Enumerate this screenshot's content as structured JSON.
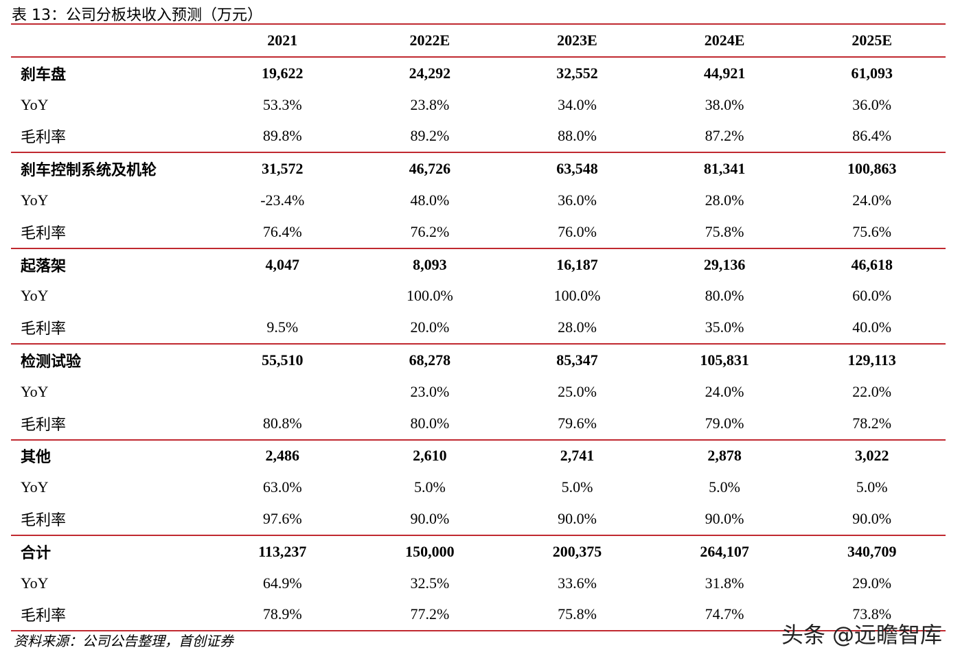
{
  "title": "表 13：公司分板块收入预测（万元）",
  "columns": [
    "",
    "2021",
    "2022E",
    "2023E",
    "2024E",
    "2025E"
  ],
  "rows": [
    {
      "label": "刹车盘",
      "main": true,
      "values": [
        "19,622",
        "24,292",
        "32,552",
        "44,921",
        "61,093"
      ]
    },
    {
      "label": "YoY",
      "main": false,
      "values": [
        "53.3%",
        "23.8%",
        "34.0%",
        "38.0%",
        "36.0%"
      ]
    },
    {
      "label": "毛利率",
      "main": false,
      "values": [
        "89.8%",
        "89.2%",
        "88.0%",
        "87.2%",
        "86.4%"
      ]
    },
    {
      "label": "刹车控制系统及机轮",
      "main": true,
      "values": [
        "31,572",
        "46,726",
        "63,548",
        "81,341",
        "100,863"
      ]
    },
    {
      "label": "YoY",
      "main": false,
      "values": [
        "-23.4%",
        "48.0%",
        "36.0%",
        "28.0%",
        "24.0%"
      ]
    },
    {
      "label": "毛利率",
      "main": false,
      "values": [
        "76.4%",
        "76.2%",
        "76.0%",
        "75.8%",
        "75.6%"
      ]
    },
    {
      "label": "起落架",
      "main": true,
      "values": [
        "4,047",
        "8,093",
        "16,187",
        "29,136",
        "46,618"
      ]
    },
    {
      "label": "YoY",
      "main": false,
      "values": [
        "",
        "100.0%",
        "100.0%",
        "80.0%",
        "60.0%"
      ]
    },
    {
      "label": "毛利率",
      "main": false,
      "values": [
        "9.5%",
        "20.0%",
        "28.0%",
        "35.0%",
        "40.0%"
      ]
    },
    {
      "label": "检测试验",
      "main": true,
      "values": [
        "55,510",
        "68,278",
        "85,347",
        "105,831",
        "129,113"
      ]
    },
    {
      "label": "YoY",
      "main": false,
      "values": [
        "",
        "23.0%",
        "25.0%",
        "24.0%",
        "22.0%"
      ]
    },
    {
      "label": "毛利率",
      "main": false,
      "values": [
        "80.8%",
        "80.0%",
        "79.6%",
        "79.0%",
        "78.2%"
      ]
    },
    {
      "label": "其他",
      "main": true,
      "values": [
        "2,486",
        "2,610",
        "2,741",
        "2,878",
        "3,022"
      ]
    },
    {
      "label": "YoY",
      "main": false,
      "values": [
        "63.0%",
        "5.0%",
        "5.0%",
        "5.0%",
        "5.0%"
      ]
    },
    {
      "label": "毛利率",
      "main": false,
      "values": [
        "97.6%",
        "90.0%",
        "90.0%",
        "90.0%",
        "90.0%"
      ]
    },
    {
      "label": "合计",
      "main": true,
      "values": [
        "113,237",
        "150,000",
        "200,375",
        "264,107",
        "340,709"
      ]
    },
    {
      "label": "YoY",
      "main": false,
      "values": [
        "64.9%",
        "32.5%",
        "33.6%",
        "31.8%",
        "29.0%"
      ]
    },
    {
      "label": "毛利率",
      "main": false,
      "values": [
        "78.9%",
        "77.2%",
        "75.8%",
        "74.7%",
        "73.8%"
      ]
    }
  ],
  "source": "资料来源：公司公告整理，首创证券",
  "watermark": "头条 @远瞻智库"
}
